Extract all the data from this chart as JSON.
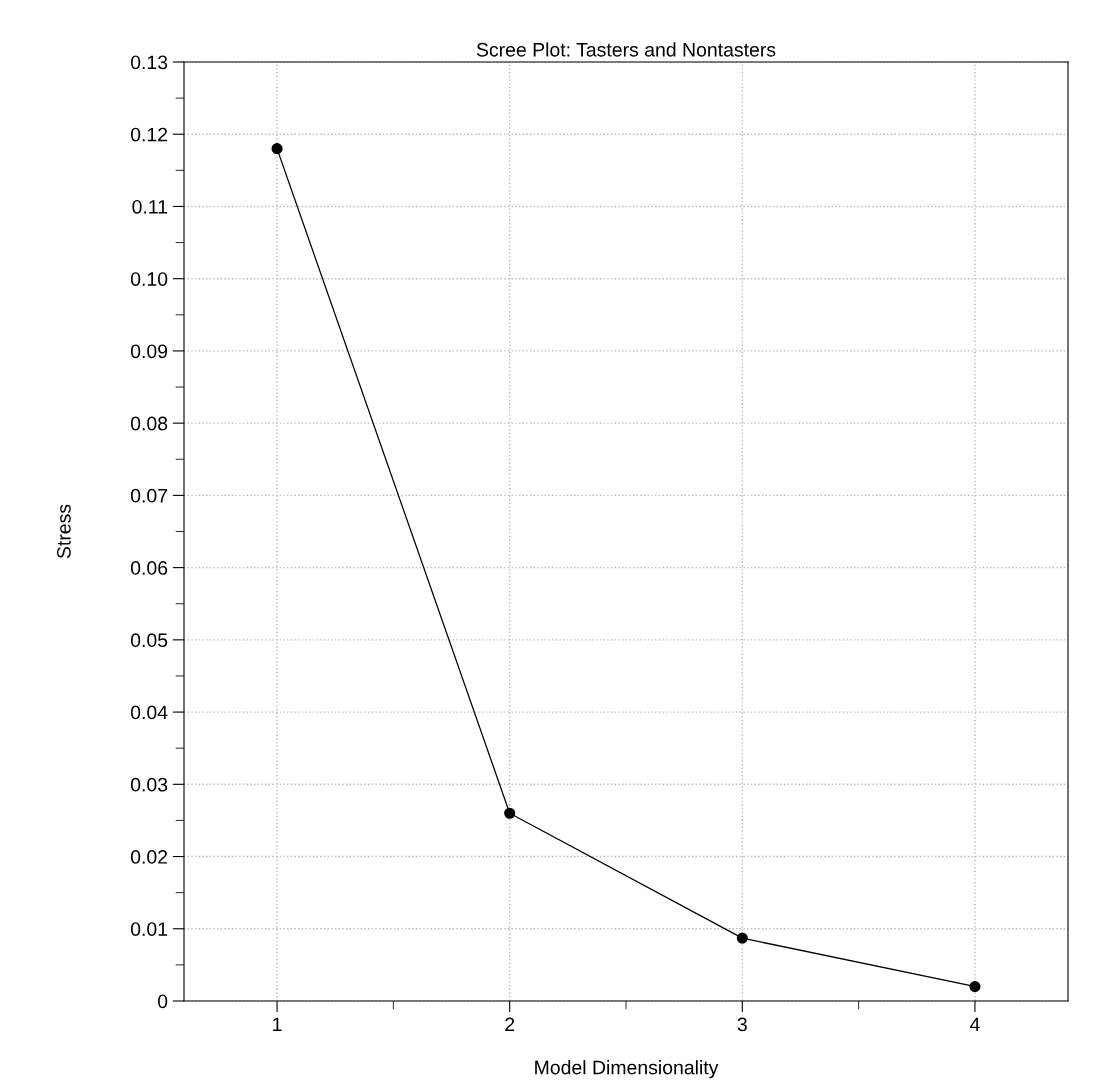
{
  "chart_data": {
    "type": "line",
    "title": "Scree Plot: Tasters and Nontasters",
    "xlabel": "Model Dimensionality",
    "ylabel": "Stress",
    "x": [
      1,
      2,
      3,
      4
    ],
    "series": [
      {
        "color": "#000000",
        "values": [
          0.118,
          0.026,
          0.0087,
          0.002
        ]
      }
    ],
    "xlim": [
      0.6,
      4.4
    ],
    "xticks": [
      1,
      2,
      3,
      4
    ],
    "ylim": [
      0,
      0.13
    ],
    "yticks": [
      0,
      0.01,
      0.02,
      0.03,
      0.04,
      0.05,
      0.06,
      0.07,
      0.08,
      0.09,
      {
        "value": 0.1,
        "label": "0.10"
      },
      0.11,
      0.12,
      0.13
    ],
    "grid": true,
    "marker": "circle",
    "line_style": "solid",
    "legend": false
  }
}
